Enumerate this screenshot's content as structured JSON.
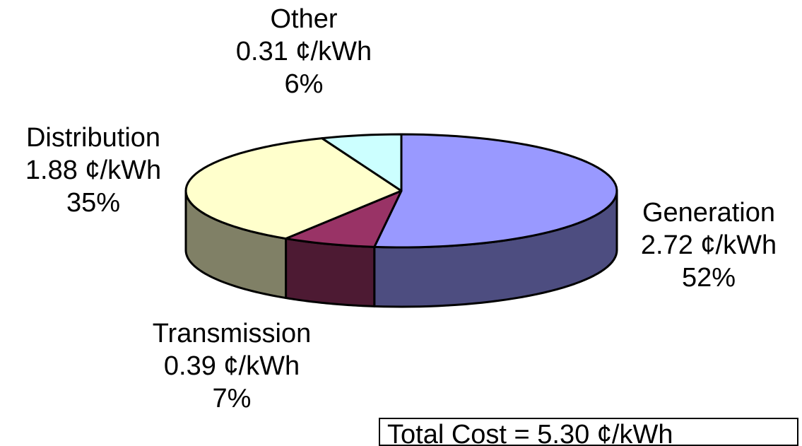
{
  "chart_data": {
    "type": "pie",
    "style": "3d",
    "unit": "¢/kWh",
    "slices": [
      {
        "name": "Generation",
        "value": 2.72,
        "value_label": "2.72 ¢/kWh",
        "percent_label": "52%",
        "percent": 52,
        "top_color": "#9999ff",
        "side_color": "#4d4d80"
      },
      {
        "name": "Transmission",
        "value": 0.39,
        "value_label": "0.39 ¢/kWh",
        "percent_label": "7%",
        "percent": 7,
        "top_color": "#993366",
        "side_color": "#4d1a33"
      },
      {
        "name": "Distribution",
        "value": 1.88,
        "value_label": "1.88 ¢/kWh",
        "percent_label": "35%",
        "percent": 35,
        "top_color": "#ffffcc",
        "side_color": "#808066"
      },
      {
        "name": "Other",
        "value": 0.31,
        "value_label": "0.31 ¢/kWh",
        "percent_label": "6%",
        "percent": 6,
        "top_color": "#ccffff",
        "side_color": "#668080"
      }
    ],
    "total_text": "Total Cost = 5.30 ¢/kWh"
  }
}
